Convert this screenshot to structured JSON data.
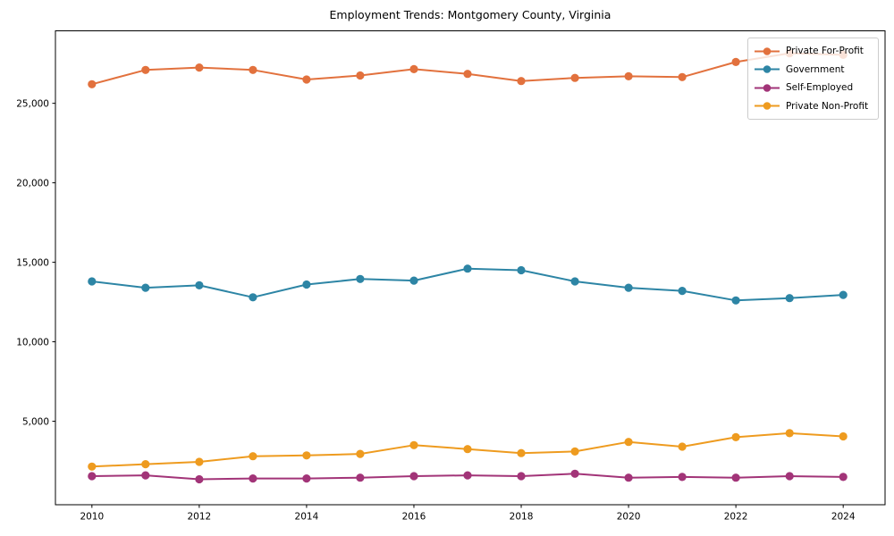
{
  "figure": {
    "title": "Employment Trends: Montgomery County, Virginia"
  },
  "chart_data": {
    "type": "line",
    "title": "Employment Trends: Montgomery County, Virginia",
    "xlabel": "",
    "ylabel": "",
    "x": [
      2010,
      2011,
      2012,
      2013,
      2014,
      2015,
      2016,
      2017,
      2018,
      2019,
      2020,
      2021,
      2022,
      2023,
      2024
    ],
    "series": [
      {
        "name": "Private For-Profit",
        "color": "#e2713d",
        "values": [
          26200,
          27100,
          27250,
          27100,
          26500,
          26750,
          27150,
          26850,
          26400,
          26600,
          26700,
          26650,
          27600,
          28150,
          28050
        ]
      },
      {
        "name": "Government",
        "color": "#2d85a5",
        "values": [
          13800,
          13400,
          13550,
          12800,
          13600,
          13950,
          13850,
          14600,
          14500,
          13800,
          13400,
          13200,
          12600,
          12750,
          12950
        ]
      },
      {
        "name": "Self-Employed",
        "color": "#a23478",
        "values": [
          1550,
          1600,
          1350,
          1400,
          1400,
          1450,
          1550,
          1600,
          1550,
          1700,
          1450,
          1500,
          1450,
          1550,
          1500
        ]
      },
      {
        "name": "Private Non-Profit",
        "color": "#ee9b1f",
        "values": [
          2150,
          2300,
          2450,
          2800,
          2850,
          2950,
          3500,
          3250,
          3000,
          3100,
          3700,
          3400,
          4000,
          4250,
          4050
        ]
      }
    ],
    "xlim": [
      2009.32,
      2024.78
    ],
    "ylim": [
      -250,
      29560
    ],
    "xticks": {
      "values": [
        2010,
        2012,
        2014,
        2016,
        2018,
        2020,
        2022,
        2024
      ],
      "labels": [
        "2010",
        "2012",
        "2014",
        "2016",
        "2018",
        "2020",
        "2022",
        "2024"
      ]
    },
    "yticks": {
      "values": [
        5000,
        10000,
        15000,
        20000,
        25000
      ],
      "labels": [
        "5,000",
        "10,000",
        "15,000",
        "20,000",
        "25,000"
      ]
    },
    "grid": false,
    "legend_position": "upper right",
    "axis_color": "#000000"
  }
}
